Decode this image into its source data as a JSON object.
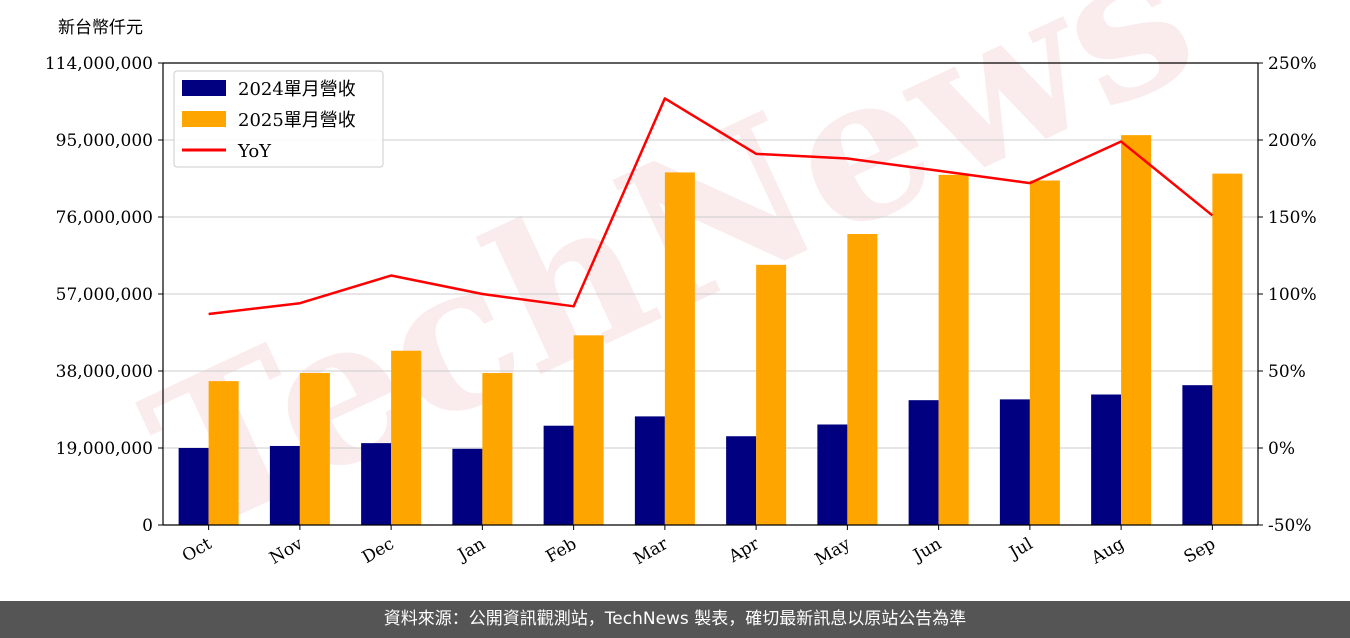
{
  "unit_label": "新台幣仟元",
  "watermark": "TechNews",
  "footer": "資料來源：公開資訊觀測站，TechNews 製表，確切最新訊息以原站公告為準",
  "chart_data": {
    "type": "bar",
    "categories": [
      "Oct",
      "Nov",
      "Dec",
      "Jan",
      "Feb",
      "Mar",
      "Apr",
      "May",
      "Jun",
      "Jul",
      "Aug",
      "Sep"
    ],
    "series": [
      {
        "name": "2024單月營收",
        "type": "bar",
        "axis": "left",
        "color": "#000080",
        "values": [
          19000000,
          19500000,
          20200000,
          18800000,
          24500000,
          26800000,
          21900000,
          24800000,
          30800000,
          31000000,
          32200000,
          34500000
        ]
      },
      {
        "name": "2025單月營收",
        "type": "bar",
        "axis": "left",
        "color": "#FFA500",
        "values": [
          35500000,
          37500000,
          43000000,
          37500000,
          46800000,
          87000000,
          64200000,
          71800000,
          86400000,
          85000000,
          96200000,
          86700000
        ]
      },
      {
        "name": "YoY",
        "type": "line",
        "axis": "right",
        "color": "#FF0000",
        "values": [
          87,
          94,
          112,
          100,
          92,
          227,
          191,
          188,
          180,
          172,
          199,
          151
        ]
      }
    ],
    "y_left": {
      "min": 0,
      "max": 114000000,
      "ticks": [
        0,
        19000000,
        38000000,
        57000000,
        76000000,
        95000000,
        114000000
      ]
    },
    "y_right": {
      "min": -50,
      "max": 250,
      "ticks": [
        -50,
        0,
        50,
        100,
        150,
        200,
        250
      ],
      "format": "percent"
    },
    "grid": "horizontal",
    "legend": "top-left"
  }
}
